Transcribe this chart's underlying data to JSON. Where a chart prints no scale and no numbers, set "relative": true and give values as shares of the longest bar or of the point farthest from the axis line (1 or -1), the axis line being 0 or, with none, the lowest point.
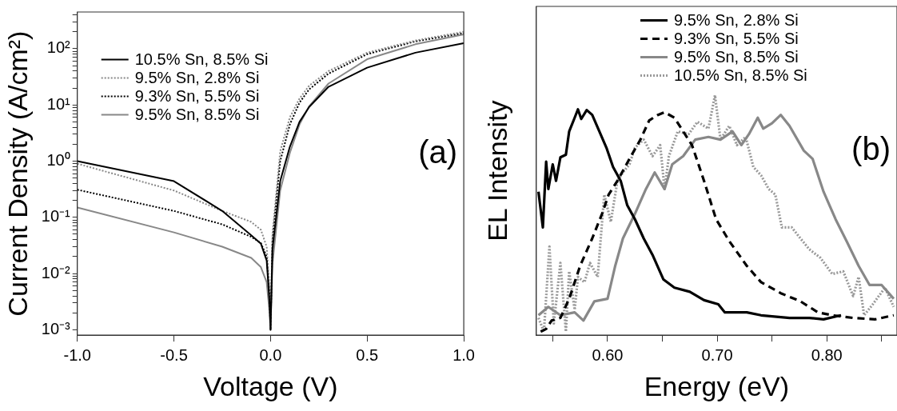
{
  "chart_data": [
    {
      "type": "line",
      "xlabel": "Voltage (V)",
      "ylabel": "Current Density (A/cm²)",
      "log": "y",
      "legend": "top left",
      "annotations": [
        "(a)"
      ],
      "x": [
        -1,
        -0.5,
        -0.25,
        -0.1,
        -0.05,
        -0.02,
        -0.005,
        0,
        0.01,
        0.05,
        0.1,
        0.15,
        0.2,
        0.3,
        0.5,
        0.75,
        1
      ],
      "xlim": [
        -1,
        1
      ],
      "xticks": [
        {
          "value": -1,
          "label": "-1.0"
        },
        {
          "value": -0.5,
          "label": "-0.5"
        },
        {
          "value": 0,
          "label": "0.0"
        },
        {
          "value": 0.5,
          "label": "0.5"
        },
        {
          "value": 1,
          "label": "1.0"
        }
      ],
      "ylim": [
        0.0008,
        450
      ],
      "yticks": [
        {
          "value": 0.001,
          "label": "10⁻³"
        },
        {
          "value": 0.002,
          "label": null
        },
        {
          "value": 0.003,
          "label": null
        },
        {
          "value": 0.004,
          "label": null
        },
        {
          "value": 0.005,
          "label": null
        },
        {
          "value": 0.006,
          "label": null
        },
        {
          "value": 0.007,
          "label": null
        },
        {
          "value": 0.008,
          "label": null
        },
        {
          "value": 0.009,
          "label": null
        },
        {
          "value": 0.01,
          "label": "10⁻²"
        },
        {
          "value": 0.02,
          "label": null
        },
        {
          "value": 0.03,
          "label": null
        },
        {
          "value": 0.04,
          "label": null
        },
        {
          "value": 0.05,
          "label": null
        },
        {
          "value": 0.06,
          "label": null
        },
        {
          "value": 0.07,
          "label": null
        },
        {
          "value": 0.08,
          "label": null
        },
        {
          "value": 0.09,
          "label": null
        },
        {
          "value": 0.1,
          "label": "10⁻¹"
        },
        {
          "value": 0.2,
          "label": null
        },
        {
          "value": 0.3,
          "label": null
        },
        {
          "value": 0.4,
          "label": null
        },
        {
          "value": 0.5,
          "label": null
        },
        {
          "value": 0.6,
          "label": null
        },
        {
          "value": 0.7,
          "label": null
        },
        {
          "value": 0.8,
          "label": null
        },
        {
          "value": 0.9,
          "label": null
        },
        {
          "value": 1,
          "label": "10⁰"
        },
        {
          "value": 2,
          "label": null
        },
        {
          "value": 3,
          "label": null
        },
        {
          "value": 4,
          "label": null
        },
        {
          "value": 5,
          "label": null
        },
        {
          "value": 6,
          "label": null
        },
        {
          "value": 7,
          "label": null
        },
        {
          "value": 8,
          "label": null
        },
        {
          "value": 9,
          "label": null
        },
        {
          "value": 10,
          "label": "10¹"
        },
        {
          "value": 20,
          "label": null
        },
        {
          "value": 30,
          "label": null
        },
        {
          "value": 40,
          "label": null
        },
        {
          "value": 50,
          "label": null
        },
        {
          "value": 60,
          "label": null
        },
        {
          "value": 70,
          "label": null
        },
        {
          "value": 80,
          "label": null
        },
        {
          "value": 90,
          "label": null
        },
        {
          "value": 100,
          "label": "10²"
        },
        {
          "value": 200,
          "label": null
        },
        {
          "value": 300,
          "label": null
        },
        {
          "value": 400,
          "label": null
        }
      ],
      "series": [
        {
          "name": "10.5% Sn, 8.5% Si",
          "color": "#000000",
          "line_style": "solid",
          "values": [
            1.0,
            0.44,
            0.13,
            0.048,
            0.034,
            0.017,
            0.003,
            0.001,
            0.027,
            0.44,
            1.8,
            5,
            9.2,
            21,
            46,
            85,
            125
          ]
        },
        {
          "name": "9.5% Sn, 2.8% Si",
          "color": "#888888",
          "line_style": "dotted",
          "values": [
            0.9,
            0.3,
            0.13,
            0.083,
            0.06,
            0.03,
            0.005,
            0.001,
            0.05,
            1.5,
            6,
            13,
            22,
            40,
            85,
            140,
            200
          ]
        },
        {
          "name": "9.3% Sn, 5.5% Si",
          "color": "#000000",
          "line_style": "dotted",
          "values": [
            0.31,
            0.13,
            0.075,
            0.045,
            0.035,
            0.02,
            0.004,
            0.001,
            0.04,
            1.0,
            4.5,
            11,
            19,
            36,
            80,
            135,
            190
          ]
        },
        {
          "name": "9.5% Sn, 8.5% Si",
          "color": "#888888",
          "line_style": "solid",
          "values": [
            0.15,
            0.054,
            0.03,
            0.019,
            0.013,
            0.007,
            0.002,
            0.001,
            0.015,
            0.3,
            1.4,
            4.5,
            9.5,
            24,
            65,
            120,
            180
          ]
        }
      ]
    },
    {
      "type": "line",
      "xlabel": "Energy (eV)",
      "ylabel": "EL Intensity",
      "relative": true,
      "tick_labels": "x",
      "legend": "top",
      "annotations": [
        "(b)"
      ],
      "xlim": [
        0.535,
        0.864
      ],
      "xticks": [
        {
          "value": 0.55,
          "label": null
        },
        {
          "value": 0.6,
          "label": "0.60"
        },
        {
          "value": 0.65,
          "label": null
        },
        {
          "value": 0.7,
          "label": "0.70"
        },
        {
          "value": 0.75,
          "label": null
        },
        {
          "value": 0.8,
          "label": "0.80"
        },
        {
          "value": 0.85,
          "label": null
        }
      ],
      "series": [
        {
          "name": "9.5% Sn, 2.8% Si",
          "color": "#000000",
          "line_style": "solid",
          "x": [
            0.537,
            0.541,
            0.544,
            0.546,
            0.55,
            0.553,
            0.557,
            0.562,
            0.565,
            0.57,
            0.573,
            0.576,
            0.581,
            0.586,
            0.592,
            0.599,
            0.605,
            0.612,
            0.618,
            0.625,
            0.633,
            0.641,
            0.651,
            0.661,
            0.675,
            0.688,
            0.701,
            0.707,
            0.727,
            0.74,
            0.766,
            0.784,
            0.797,
            0.813
          ],
          "values": [
            0.598,
            0.449,
            0.723,
            0.609,
            0.712,
            0.643,
            0.741,
            0.752,
            0.849,
            0.906,
            0.941,
            0.901,
            0.938,
            0.918,
            0.855,
            0.781,
            0.701,
            0.643,
            0.541,
            0.483,
            0.403,
            0.335,
            0.232,
            0.198,
            0.181,
            0.146,
            0.129,
            0.095,
            0.095,
            0.083,
            0.072,
            0.072,
            0.066,
            0.083
          ]
        },
        {
          "name": "9.3% Sn, 5.5% Si",
          "color": "#000000",
          "line_style": "dashed",
          "x": [
            0.539,
            0.544,
            0.549,
            0.557,
            0.565,
            0.575,
            0.586,
            0.595,
            0.601,
            0.609,
            0.62,
            0.63,
            0.638,
            0.646,
            0.652,
            0.661,
            0.669,
            0.677,
            0.688,
            0.699,
            0.711,
            0.727,
            0.74,
            0.758,
            0.776,
            0.792,
            0.805,
            0.824,
            0.844,
            0.861
          ],
          "values": [
            0.015,
            0.026,
            0.061,
            0.072,
            0.152,
            0.289,
            0.403,
            0.506,
            0.586,
            0.643,
            0.735,
            0.815,
            0.895,
            0.918,
            0.929,
            0.906,
            0.849,
            0.792,
            0.643,
            0.483,
            0.392,
            0.289,
            0.221,
            0.175,
            0.141,
            0.095,
            0.083,
            0.072,
            0.066,
            0.083
          ]
        },
        {
          "name": "9.5% Sn, 8.5% Si",
          "color": "#888888",
          "line_style": "solid",
          "x": [
            0.537,
            0.546,
            0.557,
            0.57,
            0.578,
            0.588,
            0.6,
            0.607,
            0.614,
            0.625,
            0.635,
            0.643,
            0.652,
            0.659,
            0.669,
            0.68,
            0.692,
            0.703,
            0.714,
            0.722,
            0.729,
            0.737,
            0.742,
            0.75,
            0.758,
            0.766,
            0.779,
            0.787,
            0.797,
            0.808,
            0.818,
            0.829,
            0.839,
            0.85,
            0.861
          ],
          "values": [
            0.083,
            0.118,
            0.083,
            0.095,
            0.061,
            0.141,
            0.152,
            0.289,
            0.403,
            0.506,
            0.609,
            0.678,
            0.609,
            0.712,
            0.746,
            0.815,
            0.826,
            0.815,
            0.849,
            0.792,
            0.838,
            0.906,
            0.861,
            0.883,
            0.918,
            0.872,
            0.769,
            0.735,
            0.598,
            0.483,
            0.392,
            0.289,
            0.209,
            0.209,
            0.152
          ]
        },
        {
          "name": "10.5% Sn, 8.5% Si",
          "color": "#999999",
          "line_style": "dotted",
          "x": [
            0.537,
            0.542,
            0.547,
            0.551,
            0.557,
            0.562,
            0.565,
            0.57,
            0.573,
            0.579,
            0.584,
            0.591,
            0.597,
            0.603,
            0.609,
            0.614,
            0.62,
            0.625,
            0.633,
            0.641,
            0.648,
            0.652,
            0.656,
            0.664,
            0.674,
            0.682,
            0.692,
            0.698,
            0.703,
            0.711,
            0.718,
            0.726,
            0.733,
            0.74,
            0.747,
            0.753,
            0.759,
            0.768,
            0.776,
            0.784,
            0.794,
            0.805,
            0.815,
            0.824,
            0.829,
            0.834,
            0.842,
            0.853,
            0.861
          ],
          "values": [
            0.072,
            0.015,
            0.369,
            0.049,
            0.301,
            0.015,
            0.266,
            0.106,
            0.243,
            0.221,
            0.301,
            0.243,
            0.586,
            0.472,
            0.643,
            0.678,
            0.712,
            0.781,
            0.815,
            0.746,
            0.792,
            0.609,
            0.746,
            0.849,
            0.838,
            0.889,
            0.861,
            1,
            0.815,
            0.872,
            0.792,
            0.826,
            0.701,
            0.666,
            0.609,
            0.586,
            0.449,
            0.449,
            0.403,
            0.358,
            0.323,
            0.255,
            0.266,
            0.163,
            0.243,
            0.083,
            0.129,
            0.198,
            0.118
          ]
        }
      ]
    }
  ]
}
